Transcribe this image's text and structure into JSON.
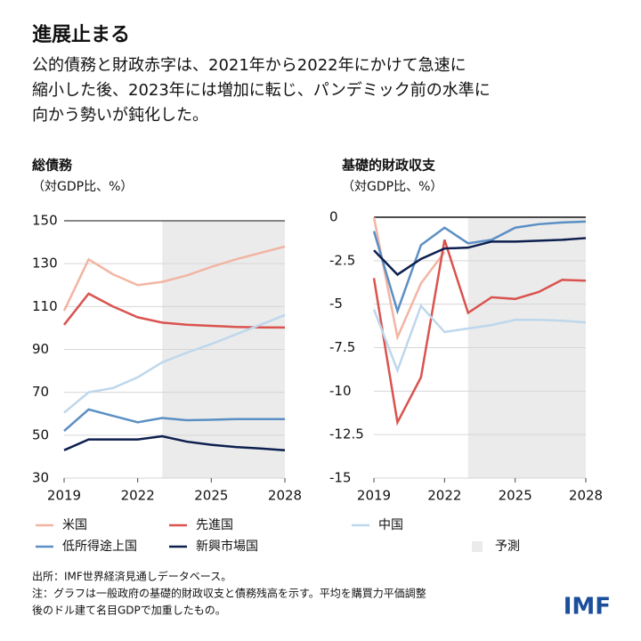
{
  "title": "進展止まる",
  "subtitle": [
    "公的債務と財政赤字は、2021年から2022年にかけて急速に",
    "縮小した後、2023年には増加に転じ、パンデミック前の水準に",
    "向かう勢いが鈍化した。"
  ],
  "forecast": {
    "label": "予測",
    "start": 2023,
    "color": "#ebebeb"
  },
  "chart_data": [
    {
      "type": "line",
      "title": "総債務",
      "subtitle": "（対GDP比、%）",
      "x": [
        2019,
        2020,
        2021,
        2022,
        2023,
        2024,
        2025,
        2026,
        2027,
        2028
      ],
      "xlim": [
        2019,
        2028
      ],
      "xticks": [
        2019,
        2022,
        2025,
        2028
      ],
      "ylim": [
        30,
        150
      ],
      "yticks": [
        30,
        50,
        70,
        90,
        110,
        130,
        150
      ],
      "grid": true,
      "series": [
        {
          "name": "米国",
          "color": "#f2b5a3",
          "values": [
            108,
            132,
            125,
            120,
            121.5,
            124.5,
            128.5,
            132,
            135,
            138
          ]
        },
        {
          "name": "先進国",
          "color": "#d9534f",
          "values": [
            101.5,
            116,
            110,
            105,
            102.5,
            101.5,
            101,
            100.5,
            100.3,
            100.2
          ]
        },
        {
          "name": "中国",
          "color": "#bed7ec",
          "values": [
            60.5,
            70,
            72,
            77,
            84,
            88.5,
            92.5,
            97,
            101.5,
            106
          ]
        },
        {
          "name": "低所得途上国",
          "color": "#5b8fc4",
          "values": [
            52,
            62,
            59,
            56,
            58,
            57,
            57.2,
            57.5,
            57.5,
            57.5
          ]
        },
        {
          "name": "新興市場国",
          "color": "#0d1f4f",
          "values": [
            43,
            48,
            48,
            48,
            49.5,
            47,
            45.5,
            44.5,
            43.8,
            43
          ]
        }
      ]
    },
    {
      "type": "line",
      "title": "基礎的財政収支",
      "subtitle": "（対GDP比、%）",
      "x": [
        2019,
        2020,
        2021,
        2022,
        2023,
        2024,
        2025,
        2026,
        2027,
        2028
      ],
      "xlim": [
        2019,
        2028
      ],
      "xticks": [
        2019,
        2022,
        2025,
        2028
      ],
      "ylim": [
        -15,
        0
      ],
      "yticks": [
        0,
        -2.5,
        -5,
        -7.5,
        -10,
        -12.5,
        -15
      ],
      "grid": true,
      "series": [
        {
          "name": "米国",
          "color": "#f2b5a3",
          "values": [
            0,
            -6.9,
            -3.8,
            -2,
            null,
            null,
            null,
            null,
            null,
            null
          ]
        },
        {
          "name": "先進国",
          "color": "#d9534f",
          "values": [
            -3.5,
            -11.8,
            -9.2,
            -1.3,
            -5.5,
            -4.6,
            -4.7,
            -4.3,
            -3.6,
            -3.65
          ]
        },
        {
          "name": "中国",
          "color": "#bed7ec",
          "values": [
            -5.3,
            -8.8,
            -5.1,
            -6.6,
            -6.4,
            -6.2,
            -5.9,
            -5.9,
            -5.95,
            -6.05
          ]
        },
        {
          "name": "低所得途上国",
          "color": "#5b8fc4",
          "values": [
            -0.8,
            -5.4,
            -1.6,
            -0.6,
            -1.5,
            -1.3,
            -0.6,
            -0.4,
            -0.3,
            -0.25
          ]
        },
        {
          "name": "新興市場国",
          "color": "#0d1f4f",
          "values": [
            -1.9,
            -3.3,
            -2.4,
            -1.8,
            -1.75,
            -1.4,
            -1.4,
            -1.35,
            -1.3,
            -1.2
          ]
        }
      ]
    }
  ],
  "notes": [
    "出所：IMF世界経済見通しデータベース。",
    "注：グラフは一般政府の基礎的財政収支と債務残高を示す。平均を購買力平価調整",
    "後のドル建て名目GDPで加重したもの。"
  ],
  "logo": "IMF"
}
